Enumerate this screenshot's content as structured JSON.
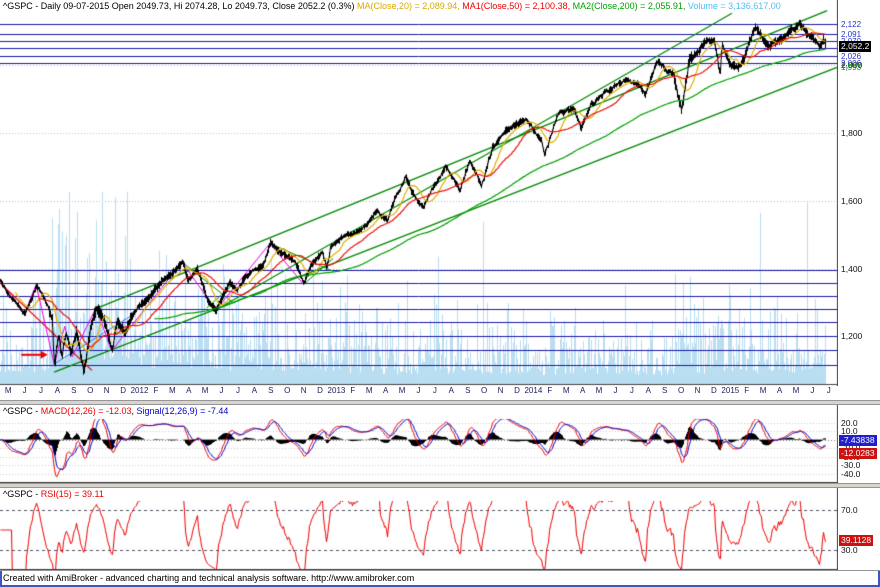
{
  "window": {
    "footer": "Created with AmiBroker - advanced charting and technical analysis software. http://www.amibroker.com"
  },
  "chart_data": {
    "type": "line",
    "description": "AmiBroker multi-pane daily chart of S&P 500 (^GSPC): price with MA(20/50/200), volume, green trend channels and horizontal blue levels; MACD(12,26) pane; RSI(15) pane",
    "panels": [
      {
        "id": "price",
        "title_segments": [
          {
            "text": "^GSPC - Daily 09-07-2015 Open 2049.73, Hi 2074.28, Lo 2049.73, Close 2052.2 (0.3%) ",
            "color": "#000000"
          },
          {
            "text": "MA(Close,20) = 2,089.94, ",
            "color": "#d9a800"
          },
          {
            "text": "MA1(Close,50) = 2,100.38, ",
            "color": "#ee0000"
          },
          {
            "text": "MA2(Close,200) = 2,055.91, ",
            "color": "#00a000"
          },
          {
            "text": "Volume = 3,136,617.00",
            "color": "#55bbee"
          }
        ],
        "x_range": [
          0,
          51
        ],
        "y_range": [
          1060,
          2150
        ],
        "x_labels": [
          "M",
          "J",
          "J",
          "A",
          "S",
          "O",
          "N",
          "D",
          "2012",
          "F",
          "M",
          "A",
          "M",
          "J",
          "J",
          "A",
          "S",
          "O",
          "N",
          "D",
          "2013",
          "F",
          "M",
          "A",
          "M",
          "J",
          "J",
          "A",
          "S",
          "O",
          "N",
          "D",
          "2014",
          "F",
          "M",
          "A",
          "M",
          "J",
          "J",
          "A",
          "S",
          "O",
          "N",
          "D",
          "2015",
          "F",
          "M",
          "A",
          "M",
          "J",
          "J"
        ],
        "y_ticks": [
          {
            "v": 2000,
            "label": "2,000"
          },
          {
            "v": 1800,
            "label": "1,800"
          },
          {
            "v": 1600,
            "label": "1,600"
          },
          {
            "v": 1400,
            "label": "1,400"
          },
          {
            "v": 1200,
            "label": "1,200"
          }
        ],
        "grid_levels": [
          2000,
          1800,
          1600,
          1400,
          1200
        ],
        "grid_color": "#adc8e2",
        "levels": [
          2122,
          2091,
          2070,
          2049,
          2026,
          2006,
          1396,
          1358,
          1319,
          1281,
          1243,
          1201,
          1160,
          1116
        ],
        "level_color": "#1a1aaa",
        "level_labels": [
          {
            "v": 2122,
            "label": "2,122",
            "color": "#2233cc"
          },
          {
            "v": 2091,
            "label": "2,091",
            "color": "#2233cc"
          },
          {
            "v": 2070,
            "label": "2,070",
            "color": "#2233cc"
          },
          {
            "v": 2026,
            "label": "2,026",
            "color": "#2233cc"
          },
          {
            "v": 2006,
            "label": "2,006",
            "color": "#2233cc"
          },
          {
            "v": 1993,
            "label": "1,993",
            "color": "#00a000"
          }
        ],
        "badge": {
          "v": 2052.2,
          "label": "2,052.2",
          "bg": "#000000"
        },
        "anchors": [
          [
            0,
            1363
          ],
          [
            0.6,
            1318
          ],
          [
            1.5,
            1268
          ],
          [
            2.2,
            1353
          ],
          [
            2.9,
            1292
          ],
          [
            3.15,
            1250
          ],
          [
            3.3,
            1119
          ],
          [
            3.55,
            1208
          ],
          [
            3.75,
            1140
          ],
          [
            4,
            1219
          ],
          [
            4.3,
            1154
          ],
          [
            4.65,
            1216
          ],
          [
            4.95,
            1131
          ],
          [
            5.1,
            1099
          ],
          [
            5.5,
            1225
          ],
          [
            5.85,
            1285
          ],
          [
            6.3,
            1253
          ],
          [
            6.8,
            1158
          ],
          [
            7.1,
            1244
          ],
          [
            7.6,
            1205
          ],
          [
            8,
            1258
          ],
          [
            8.5,
            1295
          ],
          [
            9,
            1312
          ],
          [
            10,
            1366
          ],
          [
            11,
            1408
          ],
          [
            11.1,
            1419
          ],
          [
            11.4,
            1358
          ],
          [
            12,
            1398
          ],
          [
            12.6,
            1310
          ],
          [
            13.15,
            1278
          ],
          [
            13.6,
            1325
          ],
          [
            14,
            1362
          ],
          [
            14.4,
            1334
          ],
          [
            15,
            1379
          ],
          [
            16,
            1407
          ],
          [
            16.45,
            1474
          ],
          [
            17,
            1441
          ],
          [
            17.6,
            1433
          ],
          [
            18,
            1412
          ],
          [
            18.5,
            1353
          ],
          [
            19,
            1416
          ],
          [
            19.6,
            1446
          ],
          [
            19.9,
            1402
          ],
          [
            20.1,
            1462
          ],
          [
            21,
            1498
          ],
          [
            22,
            1515
          ],
          [
            23,
            1569
          ],
          [
            23.6,
            1540
          ],
          [
            24,
            1598
          ],
          [
            24.7,
            1669
          ],
          [
            25,
            1631
          ],
          [
            25.8,
            1573
          ],
          [
            26,
            1606
          ],
          [
            27,
            1690
          ],
          [
            27.1,
            1709
          ],
          [
            28,
            1633
          ],
          [
            28.6,
            1725
          ],
          [
            29,
            1682
          ],
          [
            29.3,
            1646
          ],
          [
            30,
            1757
          ],
          [
            31,
            1806
          ],
          [
            32,
            1848
          ],
          [
            33,
            1783
          ],
          [
            33.15,
            1742
          ],
          [
            34,
            1859
          ],
          [
            35,
            1872
          ],
          [
            35.4,
            1815
          ],
          [
            36,
            1884
          ],
          [
            37,
            1924
          ],
          [
            38,
            1960
          ],
          [
            39,
            1931
          ],
          [
            39.3,
            1909
          ],
          [
            40,
            2003
          ],
          [
            41,
            1972
          ],
          [
            41.5,
            1862
          ],
          [
            42,
            2018
          ],
          [
            43,
            2068
          ],
          [
            43.5,
            2075
          ],
          [
            43.85,
            1973
          ],
          [
            44,
            2059
          ],
          [
            44.5,
            1992
          ],
          [
            45,
            1995
          ],
          [
            46,
            2105
          ],
          [
            46.8,
            2046
          ],
          [
            47,
            2068
          ],
          [
            48,
            2086
          ],
          [
            48.7,
            2126
          ],
          [
            49,
            2107
          ],
          [
            49.9,
            2057
          ],
          [
            50,
            2063
          ],
          [
            50.15,
            2077
          ],
          [
            50.3,
            2052.2
          ]
        ],
        "volatility_eras": [
          [
            0,
            1.0
          ],
          [
            3,
            2.1
          ],
          [
            8,
            1.3
          ],
          [
            14,
            1.1
          ],
          [
            20,
            0.85
          ],
          [
            32,
            0.75
          ],
          [
            41,
            1.3
          ],
          [
            42.2,
            0.85
          ],
          [
            44,
            0.95
          ]
        ],
        "volume_color": "#b9def2",
        "ma": [
          {
            "window": 20,
            "color": "#e0b000"
          },
          {
            "window": 50,
            "color": "#ee1111"
          },
          {
            "window": 200,
            "color": "#00a000"
          }
        ],
        "trendlines": [
          {
            "pts": [
              [
                3.3,
                1095
              ],
              [
                51,
                1993
              ]
            ],
            "color": "#008800",
            "w": 1.4
          },
          {
            "pts": [
              [
                5.85,
                1282
              ],
              [
                50.4,
                2160
              ]
            ],
            "color": "#008800",
            "w": 1.4
          },
          {
            "pts": [
              [
                13.15,
                1278
              ],
              [
                44.6,
                2152
              ]
            ],
            "color": "#008800",
            "w": 1.2
          },
          {
            "pts": [
              [
                11.1,
                1419
              ],
              [
                14.2,
                1300
              ]
            ],
            "color": "#009900",
            "w": 1
          },
          {
            "pts": [
              [
                12.6,
                1284
              ],
              [
                14.2,
                1354
              ]
            ],
            "color": "#009900",
            "w": 1
          },
          {
            "pts": [
              [
                16.45,
                1474
              ],
              [
                20.3,
                1392
              ]
            ],
            "color": "#009900",
            "w": 1
          },
          {
            "pts": [
              [
                18.5,
                1353
              ],
              [
                20.3,
                1430
              ]
            ],
            "color": "#009900",
            "w": 1
          },
          {
            "pts": [
              [
                0,
                1358
              ],
              [
                5.6,
                1100
              ]
            ],
            "color": "#ee0000",
            "w": 1.2
          },
          {
            "pts": [
              [
                3.3,
                1119
              ],
              [
                8.3,
                1270
              ]
            ],
            "color": "#4477ee",
            "w": 1
          }
        ],
        "zigzag": {
          "color": "#ee00ee",
          "pts": [
            [
              0,
              1363
            ],
            [
              1.5,
              1268
            ],
            [
              2.2,
              1353
            ],
            [
              3.3,
              1119
            ],
            [
              3.95,
              1230
            ],
            [
              4.4,
              1140
            ],
            [
              5.85,
              1285
            ],
            [
              6.8,
              1158
            ],
            [
              11.1,
              1419
            ],
            [
              13.15,
              1278
            ],
            [
              16.45,
              1474
            ],
            [
              18.5,
              1353
            ]
          ]
        },
        "arrow": {
          "from": [
            1.3,
            1146
          ],
          "to": [
            2.9,
            1146
          ],
          "color": "#ee0000"
        }
      },
      {
        "id": "macd",
        "title_segments": [
          {
            "text": "^GSPC - ",
            "color": "#000000"
          },
          {
            "text": "MACD(12,26) = -12.03",
            "color": "#ee0000"
          },
          {
            "text": ", ",
            "color": "#000000"
          },
          {
            "text": "Signal(12,26,9) = -7.44",
            "color": "#0000cc"
          }
        ],
        "y_range": [
          -45,
          23
        ],
        "y_ticks": [
          {
            "v": 20,
            "label": "20.0"
          },
          {
            "v": 10,
            "label": "10.0"
          },
          {
            "v": 0,
            "label": "0.0"
          },
          {
            "v": -10,
            "label": "-10.0"
          },
          {
            "v": -20,
            "label": "-20.0"
          },
          {
            "v": -30,
            "label": "-30.0"
          },
          {
            "v": -40,
            "label": "-40.0"
          }
        ],
        "params": {
          "fast": 12,
          "slow": 26,
          "signal": 9
        },
        "colors": {
          "macd": "#ee0000",
          "signal": "#0000cc",
          "hist": "#000000"
        },
        "badges": [
          {
            "v": -7.44,
            "label": "-7.43838",
            "bg": "#2020c8",
            "dy": -5
          },
          {
            "v": -12.03,
            "label": "-12.0283",
            "bg": "#cc1111",
            "dy": 4
          }
        ]
      },
      {
        "id": "rsi",
        "title_segments": [
          {
            "text": "^GSPC - ",
            "color": "#000000"
          },
          {
            "text": "RSI(15) = 39.11",
            "color": "#ee0000"
          }
        ],
        "y_range": [
          12,
          78
        ],
        "y_ticks": [
          {
            "v": 70,
            "label": "70.0"
          },
          {
            "v": 30,
            "label": "30.0"
          }
        ],
        "period": 15,
        "color": "#ee0000",
        "guide_levels": [
          70,
          30
        ],
        "badge": {
          "v": 39.11,
          "label": "39.1128",
          "bg": "#cc1111"
        }
      }
    ]
  }
}
